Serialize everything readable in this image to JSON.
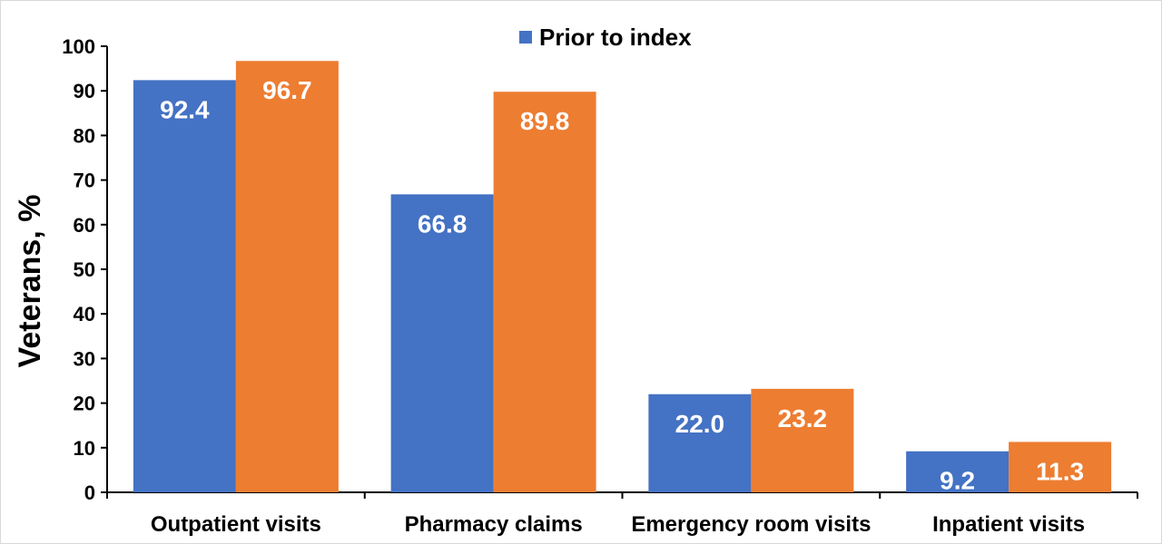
{
  "chart_data": {
    "type": "bar",
    "title": "",
    "xlabel": "",
    "ylabel": "Veterans, %",
    "ylim": [
      0,
      100
    ],
    "yticks": [
      0,
      10,
      20,
      30,
      40,
      50,
      60,
      70,
      80,
      90,
      100
    ],
    "categories": [
      "Outpatient visits",
      "Pharmacy claims",
      "Emergency room visits",
      "Inpatient visits"
    ],
    "series": [
      {
        "name": "Prior to index",
        "color": "#4472C4",
        "values": [
          92.4,
          66.8,
          22.0,
          9.2
        ],
        "labels": [
          "92.4",
          "66.8",
          "22.0",
          "9.2"
        ]
      },
      {
        "color": "#ED7D31",
        "values": [
          96.7,
          89.8,
          23.2,
          11.3
        ],
        "labels": [
          "96.7",
          "89.8",
          "23.2",
          "11.3"
        ]
      }
    ],
    "legend": {
      "position": "top-center",
      "entries": [
        "Prior to index"
      ]
    },
    "grid": false
  }
}
